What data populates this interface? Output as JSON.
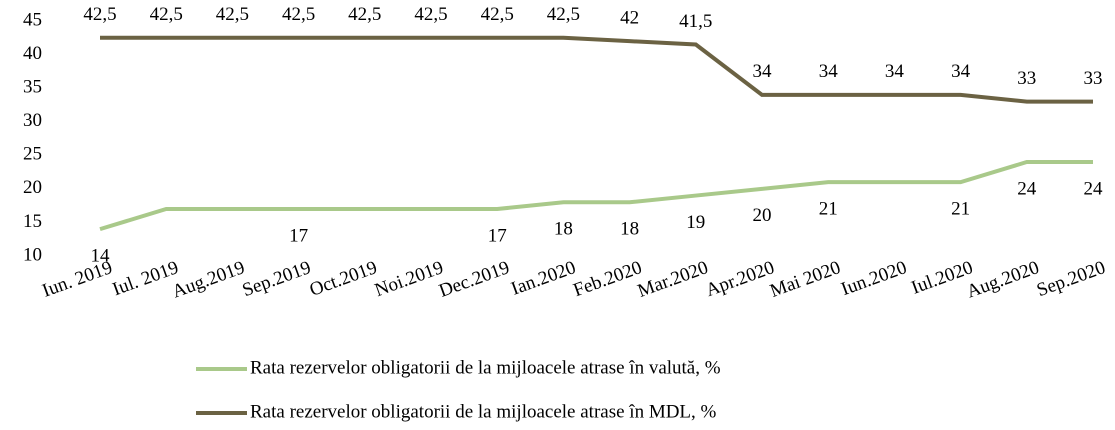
{
  "chart_data": {
    "type": "line",
    "categories": [
      "Iun. 2019",
      "Iul. 2019",
      "Aug.2019",
      "Sep.2019",
      "Oct.2019",
      "Noi.2019",
      "Dec.2019",
      "Ian.2020",
      "Feb.2020",
      "Mar.2020",
      "Apr.2020",
      "Mai 2020",
      "Iun.2020",
      "Iul.2020",
      "Aug.2020",
      "Sep.2020"
    ],
    "series": [
      {
        "name": "Rata rezervelor obligatorii de la mijloacele atrase în valută, %",
        "color": "#a9c98a",
        "values": [
          14,
          17,
          17,
          17,
          17,
          17,
          17,
          18,
          18,
          19,
          20,
          21,
          21,
          21,
          24,
          24
        ],
        "value_labels": [
          "14",
          null,
          null,
          "17",
          null,
          null,
          "17",
          "18",
          "18",
          "19",
          "20",
          "21",
          null,
          "21",
          "24",
          "24"
        ]
      },
      {
        "name": "Rata rezervelor obligatorii de la mijloacele atrase în MDL, %",
        "color": "#6b6243",
        "values": [
          42.5,
          42.5,
          42.5,
          42.5,
          42.5,
          42.5,
          42.5,
          42.5,
          42,
          41.5,
          34,
          34,
          34,
          34,
          33,
          33
        ],
        "value_labels": [
          "42,5",
          "42,5",
          "42,5",
          "42,5",
          "42,5",
          "42,5",
          "42,5",
          "42,5",
          "42",
          "41,5",
          "34",
          "34",
          "34",
          "34",
          "33",
          "33"
        ]
      }
    ],
    "ylim": [
      10,
      45
    ],
    "yticks": [
      10,
      15,
      20,
      25,
      30,
      35,
      40,
      45
    ],
    "grid": false,
    "legend": "bottom"
  }
}
